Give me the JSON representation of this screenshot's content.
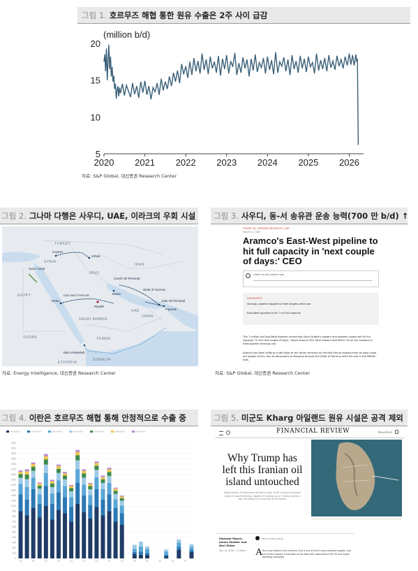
{
  "fig1": {
    "num": "그림 1.",
    "title": "호르무즈 해협 통한 원유 수출은 2주 사이 급감",
    "unit": "(million b/d)",
    "source": "자료: S&P Global, 대신증권 Research Center",
    "chart_data": {
      "type": "line",
      "title": "",
      "ylabel": "(million b/d)",
      "xlabel": "",
      "ylim": [
        5,
        20
      ],
      "xlim": [
        2020.0,
        2026.35
      ],
      "yticks": [
        5,
        10,
        15,
        20
      ],
      "xticks": [
        "2020",
        "2021",
        "2022",
        "2023",
        "2024",
        "2025",
        "2026"
      ],
      "grid": false,
      "series": [
        {
          "color": "#3a5f78",
          "x": [
            2020.0,
            2020.02,
            2020.04,
            2020.06,
            2020.08,
            2020.1,
            2020.12,
            2020.14,
            2020.16,
            2020.18,
            2020.2,
            2020.22,
            2020.24,
            2020.26,
            2020.28,
            2020.3,
            2020.32,
            2020.34,
            2020.36,
            2020.38,
            2020.4,
            2020.45,
            2020.5,
            2020.55,
            2020.6,
            2020.65,
            2020.7,
            2020.75,
            2020.8,
            2020.85,
            2020.9,
            2020.95,
            2021.0,
            2021.05,
            2021.1,
            2021.15,
            2021.2,
            2021.25,
            2021.3,
            2021.35,
            2021.4,
            2021.45,
            2021.5,
            2021.55,
            2021.6,
            2021.65,
            2021.7,
            2021.75,
            2021.8,
            2021.85,
            2021.9,
            2021.95,
            2022.0,
            2022.05,
            2022.1,
            2022.15,
            2022.2,
            2022.25,
            2022.3,
            2022.35,
            2022.4,
            2022.45,
            2022.5,
            2022.55,
            2022.6,
            2022.65,
            2022.7,
            2022.75,
            2022.8,
            2022.85,
            2022.9,
            2022.95,
            2023.0,
            2023.05,
            2023.1,
            2023.15,
            2023.2,
            2023.25,
            2023.3,
            2023.35,
            2023.4,
            2023.45,
            2023.5,
            2023.55,
            2023.6,
            2023.65,
            2023.7,
            2023.75,
            2023.8,
            2023.85,
            2023.9,
            2023.95,
            2024.0,
            2024.05,
            2024.1,
            2024.15,
            2024.2,
            2024.25,
            2024.3,
            2024.35,
            2024.4,
            2024.45,
            2024.5,
            2024.55,
            2024.6,
            2024.65,
            2024.7,
            2024.75,
            2024.8,
            2024.85,
            2024.9,
            2024.95,
            2025.0,
            2025.05,
            2025.1,
            2025.15,
            2025.2,
            2025.25,
            2025.3,
            2025.35,
            2025.4,
            2025.45,
            2025.5,
            2025.55,
            2025.6,
            2025.65,
            2025.7,
            2025.75,
            2025.8,
            2025.85,
            2025.9,
            2025.95,
            2026.0,
            2026.04,
            2026.08,
            2026.12,
            2026.16,
            2026.18,
            2026.2,
            2026.22
          ],
          "y": [
            17.5,
            18.5,
            16.2,
            19.3,
            15.0,
            17.8,
            19.8,
            16.5,
            18.2,
            15.5,
            16.8,
            14.8,
            15.6,
            13.8,
            14.5,
            12.5,
            13.6,
            14.2,
            12.8,
            14.0,
            13.2,
            14.5,
            12.9,
            14.3,
            13.5,
            12.7,
            14.6,
            13.1,
            14.2,
            12.6,
            14.8,
            13.3,
            14.9,
            13.0,
            14.2,
            12.4,
            14.0,
            13.4,
            14.6,
            13.0,
            15.2,
            13.6,
            14.8,
            13.8,
            15.5,
            14.2,
            16.0,
            14.8,
            16.3,
            14.6,
            17.2,
            15.8,
            16.9,
            15.3,
            17.5,
            15.7,
            18.0,
            16.2,
            17.6,
            15.9,
            18.6,
            16.4,
            17.8,
            15.8,
            18.2,
            16.6,
            17.5,
            16.0,
            18.3,
            15.6,
            17.9,
            16.5,
            18.4,
            15.9,
            17.6,
            16.8,
            18.7,
            15.7,
            17.3,
            16.0,
            18.1,
            16.6,
            17.8,
            15.5,
            17.9,
            16.3,
            18.5,
            16.1,
            17.4,
            16.7,
            18.0,
            15.9,
            18.2,
            16.4,
            17.7,
            15.8,
            18.8,
            16.0,
            17.5,
            16.9,
            18.1,
            16.2,
            17.8,
            15.7,
            18.4,
            16.5,
            17.6,
            16.0,
            18.3,
            16.6,
            17.9,
            16.1,
            18.2,
            16.8,
            17.4,
            15.9,
            18.6,
            16.3,
            17.7,
            16.5,
            18.0,
            16.2,
            18.4,
            16.7,
            17.6,
            16.4,
            18.3,
            16.9,
            17.8,
            16.6,
            18.2,
            17.0,
            18.6,
            17.1,
            18.4,
            17.0,
            18.5,
            17.6,
            17.8,
            6.2
          ]
        }
      ]
    }
  },
  "fig2": {
    "num": "그림 2.",
    "title": "그나마 다행은 사우디, UAE, 이라크의 우회 시설",
    "source": "자료: Energy Intelligence, 대신증권 Research Center",
    "map_labels": {
      "turkey": "TURKEY",
      "ceyhan": "Ceyhan",
      "kirkuk": "Kirkuk",
      "iraq": "IRAQ",
      "iran": "IRAN",
      "syria": "SYRIA",
      "suez": "Suez Canal",
      "egypt": "EGYPT",
      "yanbu": "Yanbu",
      "riyadh": "Riyadh",
      "basra": "Basra",
      "gurreh": "Gureh Oil Terminal",
      "hormuz": "Strait of Hormuz",
      "fujairah": "Fujairah",
      "jask": "Jask Oil Terminal",
      "saudi": "SAUDI ARABIA",
      "uae": "UAE",
      "oman": "OMAN",
      "sudan": "SUDAN",
      "yemen": "YEMEN",
      "bab": "Bab el-Mandeb",
      "ethiopia": "ETHIOPIA",
      "somalia": "SOMALIA",
      "pipeline": "EAST-WEST PIPELINE"
    }
  },
  "fig3": {
    "num": "그림 3.",
    "title": "사우디, 동-서 송유관 운송 능력(700 만 b/d) ↑",
    "source": "자료: S&P Global, 대신증권 Research Center",
    "article": {
      "category": "CRUDE OIL, REFINED PRODUCTS, LNG",
      "date": "March 11, 2026",
      "headline": "Aramco's East-West pipeline to hit full capacity in 'next couple of days:' CEO",
      "listen": "Listen to this article now",
      "highlights_label": "HIGHLIGHTS",
      "highlight1": "Storage, pipeline tapped to meet targets amid war",
      "highlight2": "East-West pipeline to hit 7 mil b/d capacity",
      "para1": "The 7 million b/d East-West pipeline connecting Saudi Arabia's eastern and western coasts will hit full capacity \"in the next couple of days,\" Saudi Aramco CEO Amin Nasser said March 10 on the company's third-quarter earnings call.",
      "para2": "Aramco has been shifting crude flows to the Yanbu terminal on the Red Sea as exports from its west coast are largely shut in due to disruptions to shipping through the Strait of Hormuz amid the war in the Middle East."
    }
  },
  "fig4": {
    "num": "그림 4.",
    "title": "이란은 호르무즈 해협 통해 안정적으로 수출 중",
    "chart_data": {
      "type": "bar",
      "stacked": true,
      "title": "",
      "ylim": [
        0,
        2200
      ],
      "yticks": [
        0,
        100,
        200,
        300,
        400,
        500,
        600,
        700,
        800,
        900,
        1000,
        1100,
        1200,
        1300,
        1400,
        1500,
        1600,
        1700,
        1800,
        1900,
        2000,
        2100,
        2200
      ],
      "legend_position": "top",
      "series": [
        {
          "color": "#1f3b66",
          "values": [
            900,
            820,
            960,
            780,
            1000,
            740,
            920,
            860,
            700,
            1040,
            880,
            760,
            980,
            820,
            900,
            700,
            640,
            0,
            80,
            70,
            60,
            0,
            0,
            40,
            0,
            160,
            0,
            120
          ]
        },
        {
          "color": "#2c78b4",
          "values": [
            320,
            300,
            360,
            260,
            380,
            300,
            340,
            310,
            280,
            400,
            320,
            260,
            340,
            300,
            320,
            260,
            220,
            0,
            40,
            60,
            40,
            0,
            0,
            30,
            0,
            60,
            0,
            40
          ]
        },
        {
          "color": "#5aa6d6",
          "values": [
            200,
            240,
            220,
            180,
            250,
            200,
            230,
            210,
            190,
            260,
            210,
            190,
            230,
            200,
            220,
            170,
            150,
            0,
            60,
            100,
            80,
            0,
            0,
            60,
            0,
            80,
            0,
            60
          ]
        },
        {
          "color": "#9ecbe6",
          "values": [
            120,
            150,
            130,
            110,
            160,
            120,
            140,
            130,
            110,
            170,
            130,
            110,
            140,
            120,
            130,
            100,
            90,
            0,
            80,
            90,
            50,
            0,
            0,
            40,
            0,
            60,
            0,
            50
          ]
        },
        {
          "color": "#3f8a4c",
          "values": [
            70,
            90,
            80,
            60,
            100,
            70,
            80,
            70,
            60,
            100,
            80,
            60,
            80,
            70,
            80,
            60,
            50,
            0,
            0,
            0,
            0,
            0,
            0,
            0,
            0,
            0,
            0,
            0
          ]
        },
        {
          "color": "#f0c64a",
          "values": [
            40,
            60,
            50,
            40,
            60,
            40,
            50,
            40,
            40,
            60,
            50,
            40,
            50,
            40,
            50,
            40,
            30,
            0,
            0,
            0,
            0,
            0,
            0,
            0,
            0,
            0,
            0,
            0
          ]
        },
        {
          "color": "#b98ad3",
          "values": [
            30,
            40,
            30,
            20,
            40,
            30,
            30,
            30,
            20,
            40,
            30,
            20,
            30,
            30,
            30,
            20,
            20,
            0,
            0,
            0,
            0,
            0,
            0,
            0,
            0,
            0,
            0,
            0
          ]
        }
      ],
      "categories": [
        "",
        "",
        "",
        "",
        "",
        "",
        "",
        "",
        "",
        "",
        "",
        "",
        "",
        "",
        "",
        "",
        "",
        "",
        "",
        "",
        "",
        "",
        "",
        "",
        "",
        "",
        "",
        ""
      ]
    }
  },
  "fig5": {
    "num": "그림 5.",
    "title": "미군도 Kharg 아일랜드 원유 시설은 공격 제외",
    "article": {
      "masthead": "FINANCIAL REVIEW",
      "nav_right": "Newsfeed",
      "headline": "Why Trump has left this Iranian oil island untouched",
      "standfirst": "Kharg Island, 25 kilometres off Iran's coast, is the country's principal crude oil export terminal, capable of loading up to 7 million barrels a day. Yet hitting it is a red line for US forces.",
      "authors": "Malcolm Moore, James Shotter and Neri Zilber",
      "dateline": "Mar 14, 2026 — 5.49am",
      "listen": "Listen to this article",
      "drop_cap": "A",
      "body": "tiny coral island in the northern Gulf is one of Iran's most sensitive targets, and one of the reasons it has been so far been left untouched in the US and Israeli bombing campaign."
    }
  }
}
